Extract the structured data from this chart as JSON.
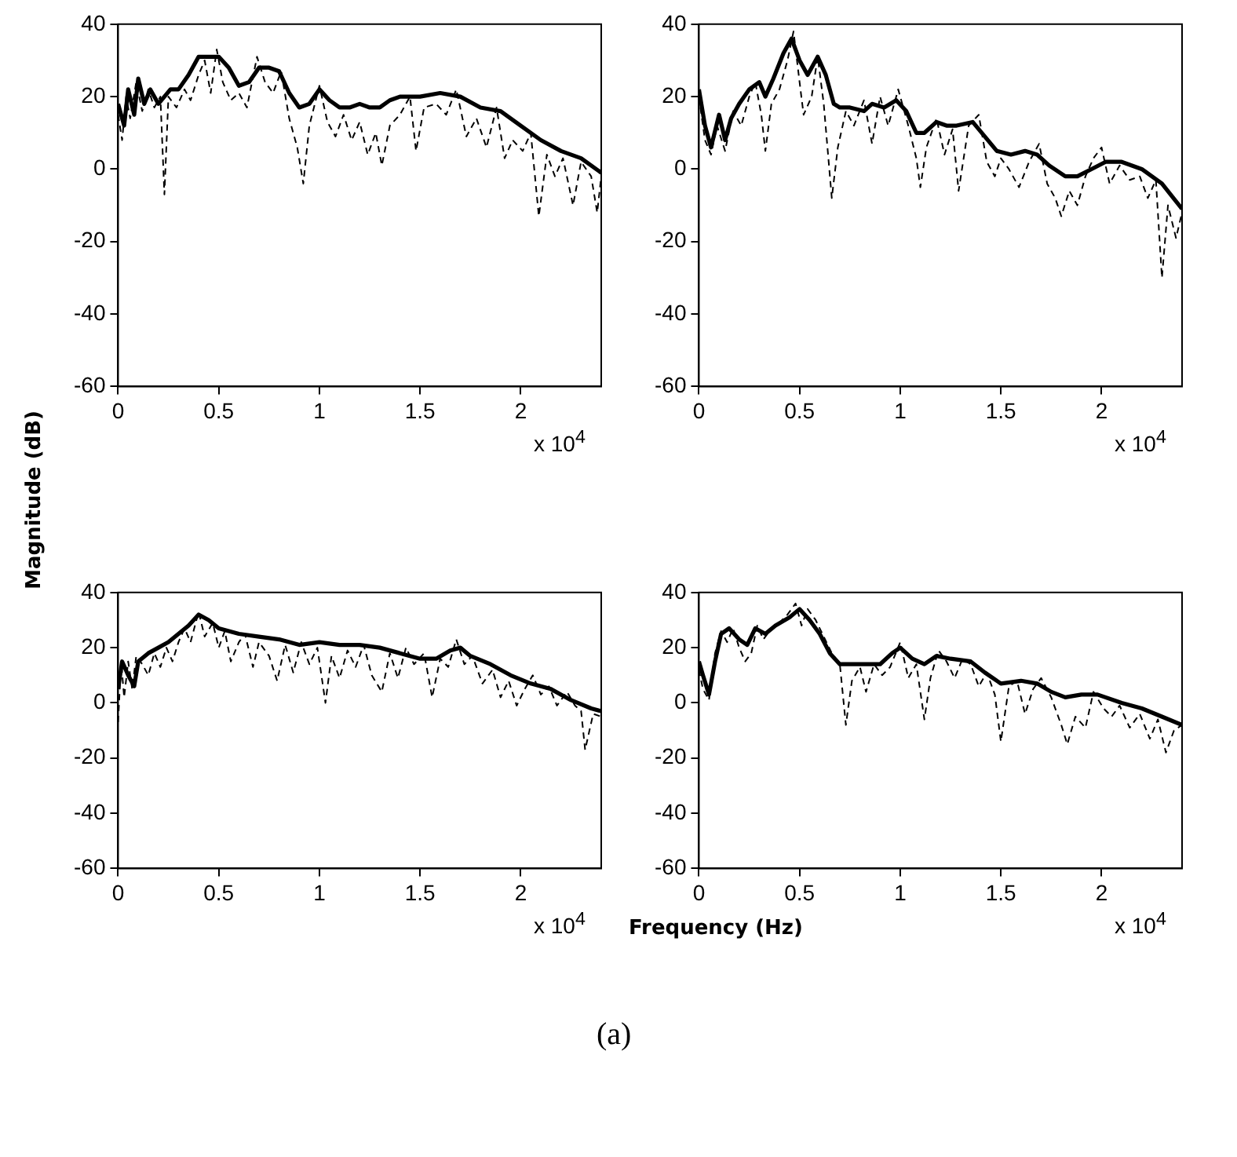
{
  "chart_data": [
    {
      "type": "line",
      "ylabel": "Magnitude (dB)",
      "annotations": [
        "x 10$^{4}$"
      ],
      "xlim": [
        0,
        2.4
      ],
      "xticks": [
        0,
        0.5,
        1,
        1.5,
        2
      ],
      "ylim": [
        -60,
        40
      ],
      "yticks": [
        -60,
        -40,
        -20,
        0,
        20,
        40
      ],
      "grid": false,
      "legend": false,
      "series": [
        {
          "color": "#000000",
          "line_style": "dashed",
          "x": [
            0,
            0.02,
            0.04,
            0.06,
            0.09,
            0.12,
            0.15,
            0.18,
            0.21,
            0.23,
            0.25,
            0.29,
            0.33,
            0.36,
            0.4,
            0.43,
            0.46,
            0.49,
            0.52,
            0.56,
            0.6,
            0.64,
            0.69,
            0.73,
            0.77,
            0.81,
            0.85,
            0.89,
            0.92,
            0.95,
            1,
            1.04,
            1.08,
            1.12,
            1.16,
            1.2,
            1.24,
            1.28,
            1.31,
            1.35,
            1.4,
            1.45,
            1.48,
            1.52,
            1.58,
            1.63,
            1.68,
            1.73,
            1.78,
            1.83,
            1.88,
            1.92,
            1.96,
            2.01,
            2.05,
            2.09,
            2.13,
            2.17,
            2.21,
            2.26,
            2.3,
            2.35,
            2.38,
            2.4
          ],
          "values": [
            15,
            8,
            20,
            14,
            24,
            16,
            22,
            17,
            20,
            -7,
            20,
            17,
            22,
            19,
            26,
            30,
            21,
            33,
            24,
            19,
            21,
            17,
            31,
            24,
            21,
            27,
            14,
            6,
            -4,
            12,
            23,
            13,
            9,
            15,
            8,
            13,
            4,
            10,
            1,
            12,
            15,
            20,
            5,
            17,
            18,
            15,
            22,
            9,
            14,
            6,
            17,
            3,
            8,
            5,
            10,
            -13,
            4,
            -2,
            3,
            -10,
            2,
            -2,
            -12,
            -2
          ]
        },
        {
          "color": "#000000",
          "line_style": "solid",
          "x": [
            0,
            0.03,
            0.05,
            0.08,
            0.1,
            0.13,
            0.16,
            0.2,
            0.23,
            0.26,
            0.3,
            0.35,
            0.4,
            0.45,
            0.5,
            0.55,
            0.6,
            0.65,
            0.7,
            0.75,
            0.8,
            0.85,
            0.9,
            0.95,
            1,
            1.05,
            1.1,
            1.15,
            1.2,
            1.25,
            1.3,
            1.35,
            1.4,
            1.5,
            1.6,
            1.7,
            1.8,
            1.9,
            2,
            2.1,
            2.2,
            2.3,
            2.4
          ],
          "values": [
            18,
            12,
            22,
            15,
            25,
            18,
            22,
            18,
            20,
            22,
            22,
            26,
            31,
            31,
            31,
            28,
            23,
            24,
            28,
            28,
            27,
            21,
            17,
            18,
            22,
            19,
            17,
            17,
            18,
            17,
            17,
            19,
            20,
            20,
            21,
            20,
            17,
            16,
            12,
            8,
            5,
            3,
            -1
          ]
        }
      ]
    },
    {
      "type": "line",
      "annotations": [
        "x 10$^{4}$"
      ],
      "xlim": [
        0,
        2.4
      ],
      "xticks": [
        0,
        0.5,
        1,
        1.5,
        2
      ],
      "ylim": [
        -60,
        40
      ],
      "yticks": [
        -60,
        -40,
        -20,
        0,
        20,
        40
      ],
      "grid": false,
      "legend": false,
      "series": [
        {
          "color": "#000000",
          "line_style": "dashed",
          "x": [
            0,
            0.03,
            0.06,
            0.09,
            0.13,
            0.17,
            0.21,
            0.25,
            0.28,
            0.31,
            0.33,
            0.36,
            0.4,
            0.44,
            0.47,
            0.5,
            0.52,
            0.56,
            0.59,
            0.62,
            0.66,
            0.69,
            0.73,
            0.77,
            0.82,
            0.86,
            0.9,
            0.94,
            0.99,
            1.04,
            1.08,
            1.1,
            1.13,
            1.18,
            1.22,
            1.26,
            1.29,
            1.34,
            1.39,
            1.43,
            1.47,
            1.5,
            1.54,
            1.59,
            1.64,
            1.69,
            1.73,
            1.77,
            1.8,
            1.84,
            1.88,
            1.92,
            1.96,
            2,
            2.04,
            2.09,
            2.14,
            2.19,
            2.23,
            2.27,
            2.3,
            2.33,
            2.37,
            2.4
          ],
          "values": [
            20,
            8,
            4,
            12,
            5,
            16,
            12,
            20,
            24,
            15,
            5,
            18,
            22,
            30,
            38,
            24,
            15,
            20,
            31,
            18,
            -8,
            6,
            16,
            12,
            19,
            7,
            20,
            12,
            22,
            12,
            3,
            -5,
            6,
            14,
            4,
            11,
            -6,
            12,
            15,
            2,
            -2,
            3,
            0,
            -5,
            2,
            7,
            -4,
            -8,
            -13,
            -6,
            -10,
            -2,
            3,
            6,
            -4,
            1,
            -3,
            -2,
            -8,
            -3,
            -30,
            -10,
            -19,
            -12
          ]
        },
        {
          "color": "#000000",
          "line_style": "solid",
          "x": [
            0,
            0.03,
            0.06,
            0.1,
            0.13,
            0.16,
            0.2,
            0.25,
            0.3,
            0.33,
            0.37,
            0.42,
            0.46,
            0.5,
            0.54,
            0.59,
            0.63,
            0.67,
            0.7,
            0.75,
            0.82,
            0.86,
            0.92,
            0.98,
            1.03,
            1.08,
            1.12,
            1.18,
            1.23,
            1.28,
            1.36,
            1.42,
            1.48,
            1.55,
            1.62,
            1.68,
            1.74,
            1.82,
            1.88,
            1.95,
            2.02,
            2.1,
            2.2,
            2.3,
            2.4
          ],
          "values": [
            22,
            12,
            6,
            15,
            8,
            14,
            18,
            22,
            24,
            20,
            25,
            32,
            36,
            30,
            26,
            31,
            26,
            18,
            17,
            17,
            16,
            18,
            17,
            19,
            16,
            10,
            10,
            13,
            12,
            12,
            13,
            9,
            5,
            4,
            5,
            4,
            1,
            -2,
            -2,
            0,
            2,
            2,
            0,
            -4,
            -11
          ]
        }
      ]
    },
    {
      "type": "line",
      "xlabel": "Frequency (Hz)",
      "annotations": [
        "x 10$^{4}$",
        "(a)"
      ],
      "xlim": [
        0,
        2.4
      ],
      "xticks": [
        0,
        0.5,
        1,
        1.5,
        2
      ],
      "ylim": [
        -60,
        40
      ],
      "yticks": [
        -60,
        -40,
        -20,
        0,
        20,
        40
      ],
      "grid": false,
      "legend": false,
      "series": [
        {
          "color": "#000000",
          "line_style": "dashed",
          "x": [
            0,
            0.015,
            0.03,
            0.05,
            0.07,
            0.09,
            0.12,
            0.15,
            0.18,
            0.21,
            0.24,
            0.27,
            0.3,
            0.33,
            0.36,
            0.4,
            0.43,
            0.47,
            0.5,
            0.53,
            0.56,
            0.6,
            0.63,
            0.67,
            0.7,
            0.75,
            0.79,
            0.83,
            0.87,
            0.91,
            0.95,
            0.99,
            1.03,
            1.06,
            1.1,
            1.14,
            1.18,
            1.22,
            1.26,
            1.31,
            1.35,
            1.39,
            1.43,
            1.47,
            1.52,
            1.56,
            1.6,
            1.64,
            1.68,
            1.72,
            1.76,
            1.81,
            1.86,
            1.9,
            1.94,
            1.98,
            2.02,
            2.06,
            2.1,
            2.14,
            2.18,
            2.23,
            2.27,
            2.3,
            2.32,
            2.36,
            2.4
          ],
          "values": [
            -7,
            15,
            2,
            15,
            5,
            17,
            14,
            10,
            18,
            13,
            20,
            15,
            22,
            27,
            22,
            33,
            24,
            29,
            20,
            26,
            15,
            22,
            25,
            13,
            22,
            17,
            8,
            21,
            11,
            22,
            14,
            20,
            0,
            17,
            9,
            19,
            13,
            21,
            10,
            4,
            18,
            9,
            20,
            14,
            18,
            2,
            16,
            13,
            23,
            14,
            17,
            7,
            12,
            2,
            8,
            -1,
            5,
            10,
            3,
            6,
            -1,
            4,
            -1,
            -3,
            -17,
            -4,
            -5
          ]
        },
        {
          "color": "#000000",
          "line_style": "solid",
          "x": [
            0,
            0.02,
            0.05,
            0.08,
            0.1,
            0.15,
            0.2,
            0.25,
            0.3,
            0.35,
            0.4,
            0.45,
            0.5,
            0.6,
            0.7,
            0.8,
            0.9,
            1,
            1.1,
            1.2,
            1.3,
            1.4,
            1.5,
            1.58,
            1.65,
            1.7,
            1.75,
            1.85,
            1.95,
            2.05,
            2.15,
            2.25,
            2.35,
            2.4
          ],
          "values": [
            5,
            15,
            10,
            6,
            15,
            18,
            20,
            22,
            25,
            28,
            32,
            30,
            27,
            25,
            24,
            23,
            21,
            22,
            21,
            21,
            20,
            18,
            16,
            16,
            19,
            20,
            17,
            14,
            10,
            7,
            5,
            1,
            -2,
            -3
          ]
        }
      ]
    },
    {
      "type": "line",
      "annotations": [
        "x 10$^{4}$"
      ],
      "xlim": [
        0,
        2.4
      ],
      "xticks": [
        0,
        0.5,
        1,
        1.5,
        2
      ],
      "ylim": [
        -60,
        40
      ],
      "yticks": [
        -60,
        -40,
        -20,
        0,
        20,
        40
      ],
      "grid": false,
      "legend": false,
      "series": [
        {
          "color": "#000000",
          "line_style": "dashed",
          "x": [
            0,
            0.02,
            0.05,
            0.08,
            0.11,
            0.14,
            0.17,
            0.2,
            0.23,
            0.26,
            0.29,
            0.32,
            0.35,
            0.4,
            0.44,
            0.48,
            0.51,
            0.54,
            0.58,
            0.62,
            0.66,
            0.7,
            0.73,
            0.76,
            0.8,
            0.83,
            0.87,
            0.91,
            0.95,
            1,
            1.04,
            1.08,
            1.12,
            1.15,
            1.19,
            1.23,
            1.27,
            1.31,
            1.35,
            1.39,
            1.43,
            1.47,
            1.5,
            1.54,
            1.58,
            1.62,
            1.66,
            1.7,
            1.75,
            1.8,
            1.83,
            1.87,
            1.92,
            1.96,
            2.01,
            2.05,
            2.09,
            2.14,
            2.19,
            2.24,
            2.28,
            2.32,
            2.36,
            2.4
          ],
          "values": [
            12,
            5,
            1,
            18,
            26,
            22,
            27,
            20,
            15,
            18,
            28,
            23,
            26,
            29,
            32,
            36,
            28,
            34,
            30,
            24,
            18,
            14,
            -8,
            8,
            13,
            4,
            14,
            10,
            13,
            22,
            9,
            14,
            -6,
            9,
            19,
            15,
            9,
            16,
            14,
            6,
            11,
            3,
            -14,
            6,
            8,
            -4,
            5,
            9,
            2,
            -8,
            -15,
            -5,
            -9,
            4,
            -2,
            -5,
            -1,
            -9,
            -4,
            -13,
            -6,
            -18,
            -10,
            -8
          ]
        },
        {
          "color": "#000000",
          "line_style": "solid",
          "x": [
            0,
            0.02,
            0.05,
            0.08,
            0.11,
            0.15,
            0.2,
            0.24,
            0.28,
            0.33,
            0.38,
            0.45,
            0.5,
            0.55,
            0.6,
            0.65,
            0.7,
            0.8,
            0.9,
            0.96,
            1,
            1.06,
            1.12,
            1.18,
            1.25,
            1.35,
            1.42,
            1.5,
            1.6,
            1.68,
            1.75,
            1.82,
            1.9,
            1.98,
            2.1,
            2.2,
            2.3,
            2.4
          ],
          "values": [
            15,
            10,
            3,
            15,
            25,
            27,
            23,
            21,
            27,
            25,
            28,
            31,
            34,
            30,
            25,
            18,
            14,
            14,
            14,
            18,
            20,
            16,
            14,
            17,
            16,
            15,
            11,
            7,
            8,
            7,
            4,
            2,
            3,
            3,
            0,
            -2,
            -5,
            -8
          ]
        }
      ]
    }
  ]
}
